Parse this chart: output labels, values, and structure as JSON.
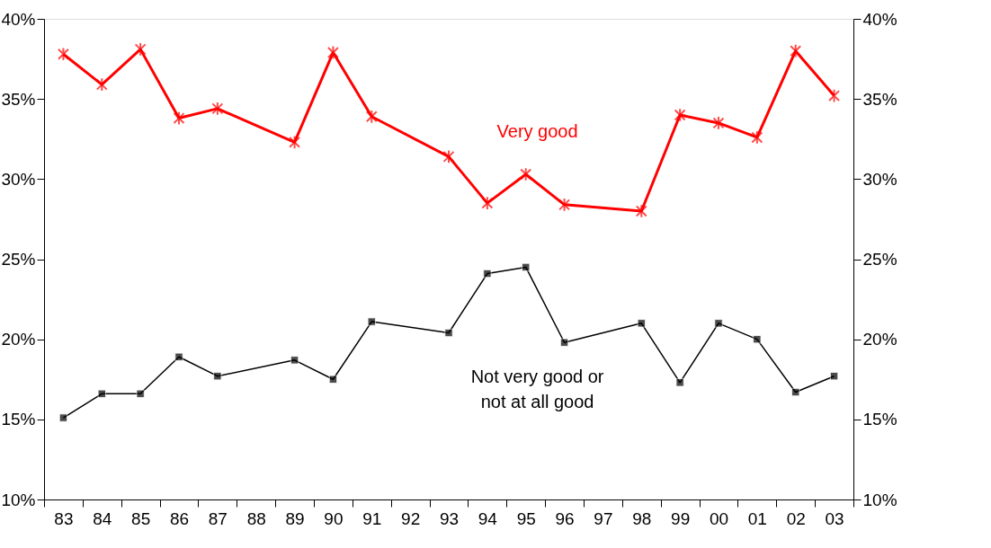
{
  "chart_data": {
    "type": "line",
    "categories": [
      "83",
      "84",
      "85",
      "86",
      "87",
      "88",
      "89",
      "90",
      "91",
      "92",
      "93",
      "94",
      "95",
      "96",
      "97",
      "98",
      "99",
      "00",
      "01",
      "02",
      "03"
    ],
    "series": [
      {
        "name": "Very good",
        "color": "#ff0000",
        "marker": "cross",
        "values": [
          37.8,
          35.9,
          38.1,
          33.8,
          34.4,
          null,
          32.3,
          37.9,
          33.9,
          null,
          31.4,
          28.5,
          30.3,
          28.4,
          null,
          28.0,
          34.0,
          33.5,
          32.6,
          38.0,
          35.2
        ]
      },
      {
        "name": "Not very good or\nnot at all good",
        "color": "#000000",
        "marker": "square",
        "values": [
          15.1,
          16.6,
          16.6,
          18.9,
          17.7,
          null,
          18.7,
          17.5,
          21.1,
          null,
          20.4,
          24.1,
          24.5,
          19.8,
          null,
          21.0,
          17.3,
          21.0,
          20.0,
          16.7,
          17.7
        ]
      }
    ],
    "ylim": [
      10,
      40
    ],
    "yticks": [
      {
        "value": 10,
        "label": "10%"
      },
      {
        "value": 15,
        "label": "15%"
      },
      {
        "value": 20,
        "label": "20%"
      },
      {
        "value": 25,
        "label": "25%"
      },
      {
        "value": 30,
        "label": "30%"
      },
      {
        "value": 35,
        "label": "35%"
      },
      {
        "value": 40,
        "label": "40%"
      }
    ],
    "y2lim": [
      10,
      40
    ],
    "y2ticks": [
      {
        "value": 10,
        "label": "10%"
      },
      {
        "value": 15,
        "label": "15%"
      },
      {
        "value": 20,
        "label": "20%"
      },
      {
        "value": 25,
        "label": "25%"
      },
      {
        "value": 30,
        "label": "30%"
      },
      {
        "value": 35,
        "label": "35%"
      },
      {
        "value": 40,
        "label": "40%"
      }
    ],
    "grid": false,
    "line_style": "solid"
  }
}
